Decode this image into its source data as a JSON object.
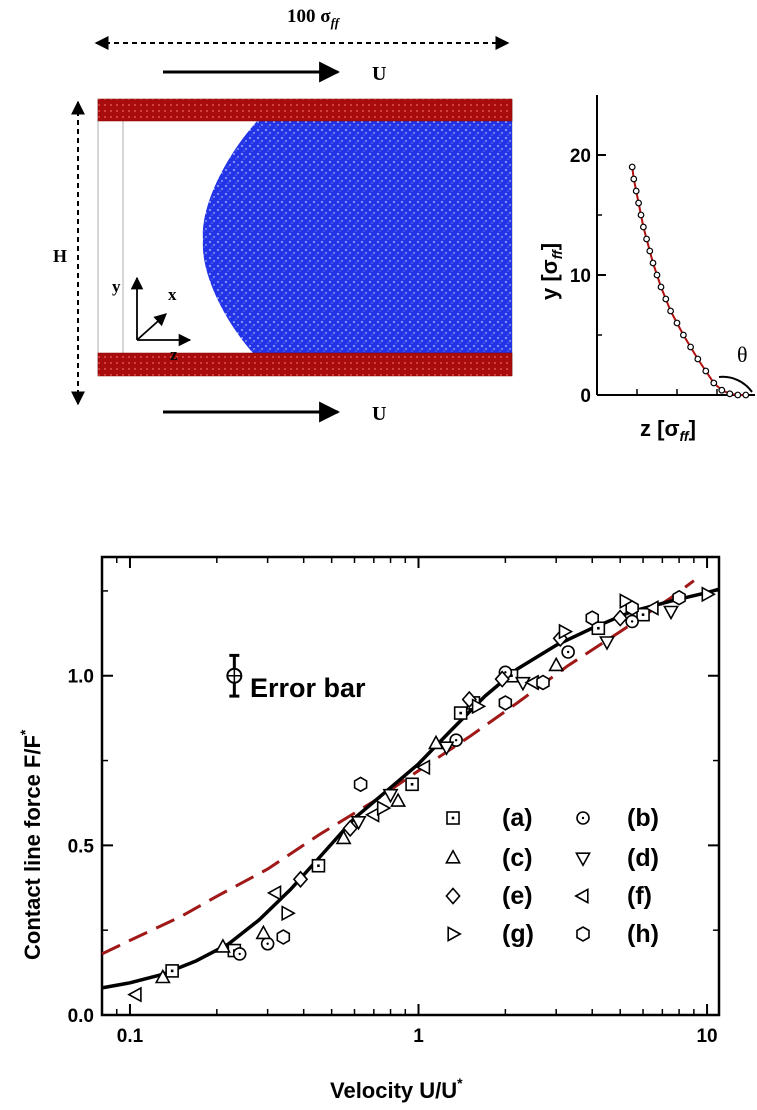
{
  "schematic": {
    "width_label_base": "100 σ",
    "width_label_sub": "ff",
    "velocity_label_top": "U",
    "velocity_label_bottom": "U",
    "height_label": "H",
    "axis_y": "y",
    "axis_x": "x",
    "axis_z": "z",
    "colors": {
      "wall": "#b01010",
      "liquid": "#1f2ee0"
    }
  },
  "chart_data": [
    {
      "type": "scatter",
      "panel": "meniscus-profile",
      "xlabel_base": "z [σ",
      "xlabel_sub": "ff",
      "xlabel_end": "]",
      "ylabel_base": "y [σ",
      "ylabel_sub": "ff",
      "ylabel_end": "]",
      "angle_label": "θ",
      "yticks": [
        0,
        10,
        20
      ],
      "ylim": [
        0,
        25
      ],
      "xlim": [
        0,
        10
      ],
      "x": [
        2.2,
        2.3,
        2.45,
        2.6,
        2.75,
        2.9,
        3.1,
        3.3,
        3.5,
        3.75,
        4.0,
        4.3,
        4.6,
        5.0,
        5.4,
        5.85,
        6.3,
        6.8,
        7.3,
        7.8,
        8.3,
        8.8,
        9.3
      ],
      "y": [
        19.0,
        18.0,
        17.0,
        16.0,
        15.0,
        14.0,
        13.0,
        12.0,
        11.0,
        10.0,
        9.0,
        8.0,
        7.0,
        6.0,
        5.0,
        4.0,
        3.0,
        2.0,
        1.0,
        0.4,
        0.1,
        0.0,
        0.0
      ],
      "line_color": "#b01010"
    },
    {
      "type": "scatter",
      "panel": "force-velocity",
      "xlabel_base": "Velocity U/U",
      "xlabel_sup": "*",
      "ylabel_base": "Contact line force F/F",
      "ylabel_sup": "*",
      "xscale": "log",
      "xlim": [
        0.08,
        11
      ],
      "ylim": [
        0.0,
        1.35
      ],
      "xticks": [
        0.1,
        1,
        10
      ],
      "xtick_labels": [
        "0.1",
        "1",
        "10"
      ],
      "yticks": [
        0.0,
        0.5,
        1.0
      ],
      "ytick_labels": [
        "0.0",
        "0.5",
        "1.0"
      ],
      "error_bar_label": "Error bar",
      "error_bar_center": [
        0.23,
        1.0
      ],
      "error_bar_halfwidth": 0.06,
      "legend_position": "bottom-right",
      "series": [
        {
          "name": "(a)",
          "marker": "square",
          "x": [
            0.14,
            0.23,
            0.45,
            0.95,
            1.4,
            1.55,
            2.1,
            4.2,
            6.0
          ],
          "y": [
            0.13,
            0.19,
            0.44,
            0.68,
            0.89,
            0.92,
            1.0,
            1.14,
            1.18
          ]
        },
        {
          "name": "(b)",
          "marker": "circle",
          "x": [
            0.24,
            0.3,
            1.35,
            2.0,
            3.3,
            5.5
          ],
          "y": [
            0.18,
            0.21,
            0.81,
            1.01,
            1.07,
            1.16
          ]
        },
        {
          "name": "(c)",
          "marker": "triangle-up",
          "x": [
            0.13,
            0.21,
            0.29,
            0.55,
            0.85,
            1.15,
            3.0
          ],
          "y": [
            0.11,
            0.2,
            0.24,
            0.52,
            0.63,
            0.8,
            1.03
          ]
        },
        {
          "name": "(d)",
          "marker": "triangle-down",
          "x": [
            0.62,
            0.8,
            1.25,
            2.3,
            4.5,
            7.5
          ],
          "y": [
            0.57,
            0.65,
            0.79,
            0.98,
            1.1,
            1.19
          ]
        },
        {
          "name": "(e)",
          "marker": "diamond",
          "x": [
            0.39,
            0.58,
            1.5,
            1.95,
            3.1,
            5.0
          ],
          "y": [
            0.4,
            0.55,
            0.93,
            0.99,
            1.11,
            1.17
          ]
        },
        {
          "name": "(f)",
          "marker": "triangle-left",
          "x": [
            0.105,
            0.32,
            0.7,
            1.05,
            2.5,
            6.5
          ],
          "y": [
            0.06,
            0.36,
            0.59,
            0.73,
            0.98,
            1.2
          ]
        },
        {
          "name": "(g)",
          "marker": "triangle-right",
          "x": [
            0.35,
            0.75,
            1.6,
            3.2,
            5.2,
            10.0
          ],
          "y": [
            0.3,
            0.61,
            0.91,
            1.13,
            1.22,
            1.24
          ]
        },
        {
          "name": "(h)",
          "marker": "hexagon",
          "x": [
            0.34,
            0.63,
            2.0,
            2.7,
            4.0,
            5.5,
            8.0
          ],
          "y": [
            0.23,
            0.68,
            0.92,
            0.98,
            1.17,
            1.2,
            1.23
          ]
        }
      ],
      "fit_solid": {
        "x": [
          0.08,
          0.1,
          0.13,
          0.17,
          0.22,
          0.28,
          0.36,
          0.46,
          0.6,
          0.8,
          1.0,
          1.3,
          1.7,
          2.2,
          3.0,
          4.0,
          5.5,
          7.5,
          10.0,
          11.0
        ],
        "y": [
          0.08,
          0.095,
          0.12,
          0.16,
          0.21,
          0.28,
          0.37,
          0.47,
          0.58,
          0.67,
          0.74,
          0.84,
          0.94,
          1.02,
          1.09,
          1.14,
          1.19,
          1.22,
          1.245,
          1.255
        ],
        "color": "#000000"
      },
      "fit_dashed": {
        "x": [
          0.08,
          0.1,
          0.15,
          0.2,
          0.3,
          0.45,
          0.7,
          1.0,
          1.5,
          2.2,
          3.3,
          5.0,
          7.5,
          9.0
        ],
        "y": [
          0.18,
          0.22,
          0.29,
          0.35,
          0.43,
          0.53,
          0.63,
          0.72,
          0.82,
          0.92,
          1.03,
          1.13,
          1.23,
          1.28
        ],
        "color": "#a01818"
      }
    }
  ]
}
